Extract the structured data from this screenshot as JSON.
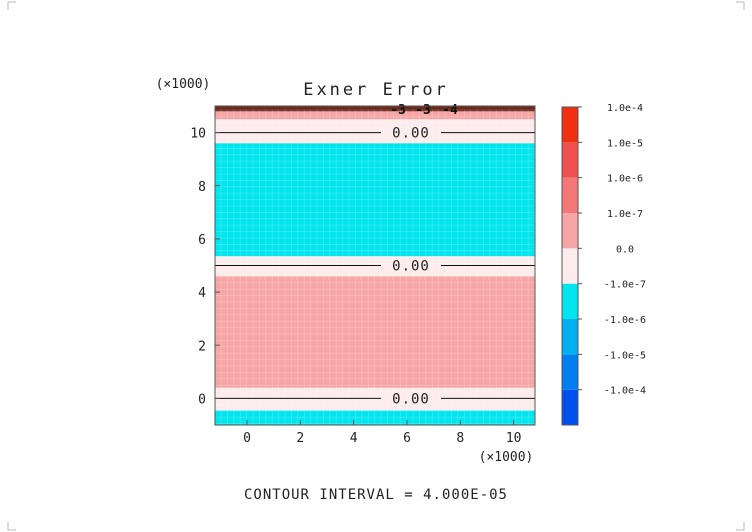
{
  "chart_data": {
    "type": "heatmap",
    "title": "Exner Error",
    "x_scale_label": "(×1000)",
    "y_scale_label": "(×1000)",
    "xlim": [
      -1.2,
      10.8
    ],
    "ylim": [
      -1.0,
      11.0
    ],
    "x_ticks": [
      {
        "value": 0,
        "label": "0"
      },
      {
        "value": 2,
        "label": "2"
      },
      {
        "value": 4,
        "label": "4"
      },
      {
        "value": 6,
        "label": "6"
      },
      {
        "value": 8,
        "label": "8"
      },
      {
        "value": 10,
        "label": "10"
      }
    ],
    "y_ticks": [
      {
        "value": 0,
        "label": "0"
      },
      {
        "value": 2,
        "label": "2"
      },
      {
        "value": 4,
        "label": "4"
      },
      {
        "value": 6,
        "label": "6"
      },
      {
        "value": 8,
        "label": "8"
      },
      {
        "value": 10,
        "label": "10"
      }
    ],
    "bands": [
      {
        "y0": -1.0,
        "y1": -0.45,
        "color": "#00e5ee"
      },
      {
        "y0": -0.45,
        "y1": 0.4,
        "color": "#fcecec"
      },
      {
        "y0": 0.4,
        "y1": 4.6,
        "color": "#f7a6a6"
      },
      {
        "y0": 4.6,
        "y1": 5.35,
        "color": "#fcecec"
      },
      {
        "y0": 5.35,
        "y1": 9.6,
        "color": "#00e5ee"
      },
      {
        "y0": 9.6,
        "y1": 10.5,
        "color": "#fcecec"
      },
      {
        "y0": 10.5,
        "y1": 10.8,
        "color": "#f7a6a6"
      },
      {
        "y0": 10.8,
        "y1": 11.0,
        "color": "#6b2a1a"
      }
    ],
    "contours": [
      {
        "y": 0.0,
        "label": "0.00"
      },
      {
        "y": 5.0,
        "label": "0.00"
      },
      {
        "y": 10.0,
        "label": "0.00"
      }
    ],
    "top_contour_labels": [
      "-3",
      "-3",
      "-4"
    ],
    "colorbar": {
      "bands": [
        "#0050ee",
        "#0080f0",
        "#00b0f0",
        "#00e5ee",
        "#fcecec",
        "#f7a6a6",
        "#f57878",
        "#f05050",
        "#f03010"
      ],
      "labels": [
        "-1.0e-4",
        "-1.0e-5",
        "-1.0e-6",
        "-1.0e-7",
        "0.0",
        "1.0e-7",
        "1.0e-6",
        "1.0e-5",
        "1.0e-4"
      ]
    },
    "footer": "CONTOUR INTERVAL = 4.000E-05"
  }
}
